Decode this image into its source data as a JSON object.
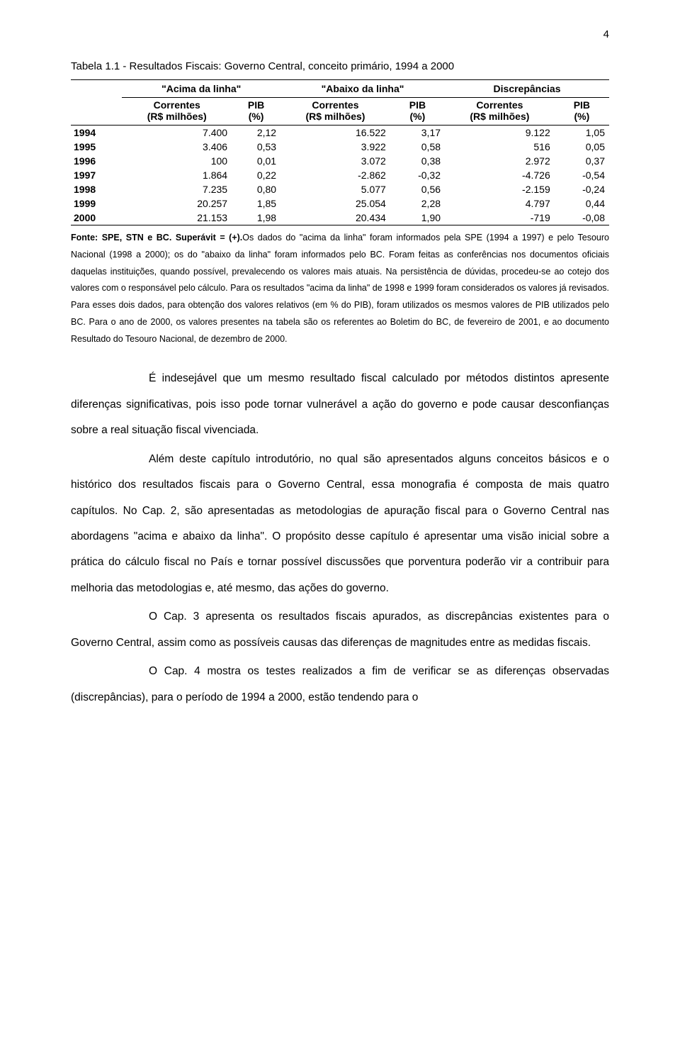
{
  "page_number": "4",
  "table": {
    "title": "Tabela 1.1 - Resultados Fiscais: Governo Central, conceito primário, 1994 a 2000",
    "group_headers": [
      "\"Acima da linha\"",
      "\"Abaixo da linha\"",
      "Discrepâncias"
    ],
    "sub_headers": {
      "c1a": "Correntes",
      "c1b": "(R$ milhões)",
      "c2a": "PIB",
      "c2b": "(%)",
      "c3a": "Correntes",
      "c3b": "(R$ milhões)",
      "c4a": "PIB",
      "c4b": "(%)",
      "c5a": "Correntes",
      "c5b": "(R$ milhões)",
      "c6a": "PIB",
      "c6b": "(%)"
    },
    "rows": [
      {
        "year": "1994",
        "c1": "7.400",
        "c2": "2,12",
        "c3": "16.522",
        "c4": "3,17",
        "c5": "9.122",
        "c6": "1,05"
      },
      {
        "year": "1995",
        "c1": "3.406",
        "c2": "0,53",
        "c3": "3.922",
        "c4": "0,58",
        "c5": "516",
        "c6": "0,05"
      },
      {
        "year": "1996",
        "c1": "100",
        "c2": "0,01",
        "c3": "3.072",
        "c4": "0,38",
        "c5": "2.972",
        "c6": "0,37"
      },
      {
        "year": "1997",
        "c1": "1.864",
        "c2": "0,22",
        "c3": "-2.862",
        "c4": "-0,32",
        "c5": "-4.726",
        "c6": "-0,54"
      },
      {
        "year": "1998",
        "c1": "7.235",
        "c2": "0,80",
        "c3": "5.077",
        "c4": "0,56",
        "c5": "-2.159",
        "c6": "-0,24"
      },
      {
        "year": "1999",
        "c1": "20.257",
        "c2": "1,85",
        "c3": "25.054",
        "c4": "2,28",
        "c5": "4.797",
        "c6": "0,44"
      },
      {
        "year": "2000",
        "c1": "21.153",
        "c2": "1,98",
        "c3": "20.434",
        "c4": "1,90",
        "c5": "-719",
        "c6": "-0,08"
      }
    ]
  },
  "footnote": {
    "lead": "Fonte: SPE, STN e BC. Superávit = (+).",
    "rest": "Os dados do \"acima da linha\" foram informados pela SPE (1994 a 1997) e pelo Tesouro Nacional (1998 a 2000); os do \"abaixo da linha\" foram informados pelo BC. Foram feitas as conferências nos documentos oficiais daquelas instituições, quando possível, prevalecendo os valores mais atuais. Na persistência de dúvidas, procedeu-se ao cotejo dos valores com o responsável pelo cálculo. Para os resultados \"acima da linha\" de 1998 e 1999 foram considerados os valores já revisados. Para esses dois dados, para obtenção dos valores relativos (em % do PIB), foram utilizados os mesmos valores de PIB utilizados pelo BC. Para o ano de 2000, os valores presentes na tabela são os referentes ao Boletim do BC, de fevereiro de 2001, e ao documento Resultado do Tesouro Nacional, de dezembro de 2000."
  },
  "paragraphs": {
    "p1": "É indesejável que um mesmo resultado fiscal calculado por métodos distintos apresente diferenças significativas, pois isso pode tornar vulnerável a ação do governo e pode causar desconfianças sobre a real situação fiscal vivenciada.",
    "p2": "Além deste capítulo introdutório, no qual são apresentados alguns conceitos básicos e o histórico dos resultados fiscais para o Governo Central, essa monografia é composta de mais quatro capítulos. No Cap. 2, são apresentadas as metodologias de apuração fiscal para o Governo Central nas abordagens \"acima e abaixo da linha\". O propósito desse capítulo é apresentar uma visão inicial sobre a prática do cálculo fiscal no País e tornar possível discussões que porventura poderão vir a contribuir para melhoria das metodologias e, até mesmo, das ações do governo.",
    "p3": "O Cap. 3 apresenta os resultados fiscais apurados, as discrepâncias existentes para o Governo Central, assim como as possíveis causas das diferenças de magnitudes entre as medidas fiscais.",
    "p4": "O Cap. 4 mostra os testes realizados a fim de verificar se as diferenças observadas (discrepâncias), para o período de 1994 a 2000, estão tendendo para o"
  }
}
